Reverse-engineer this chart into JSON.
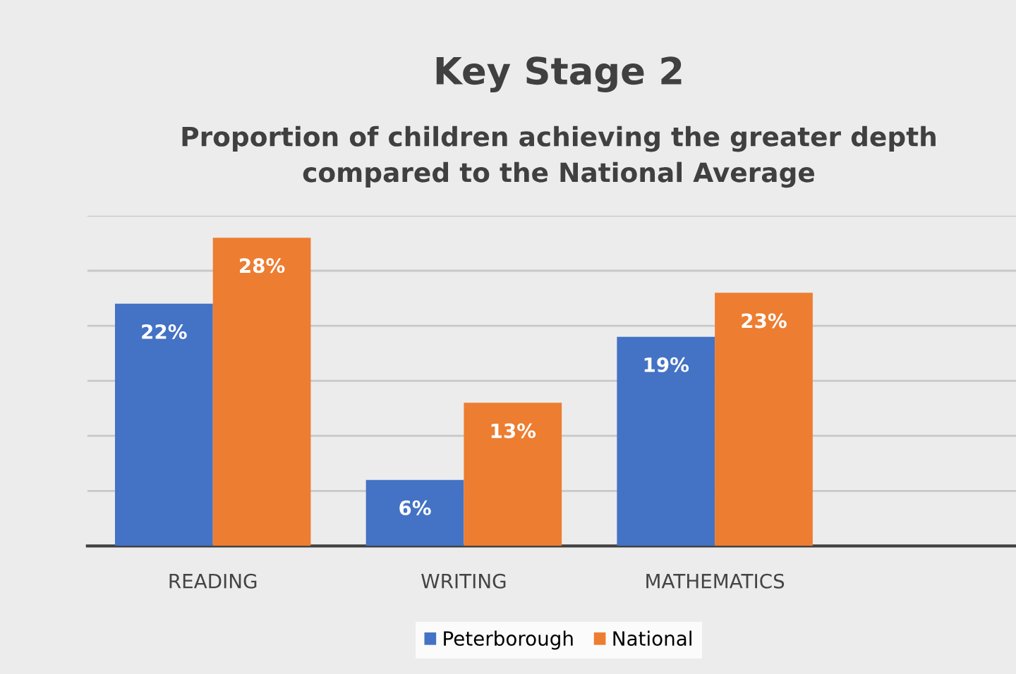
{
  "chart_data": {
    "type": "bar",
    "title": "Key Stage 2",
    "subtitle": "Proportion of children achieving the greater depth\ncompared to the National Average",
    "categories": [
      "READING",
      "WRITING",
      "MATHEMATICS"
    ],
    "series": [
      {
        "name": "Peterborough",
        "color": "#4472c4",
        "values": [
          22,
          6,
          19
        ],
        "value_labels": [
          "22%",
          "6%",
          "19%"
        ]
      },
      {
        "name": "National",
        "color": "#ed7d31",
        "values": [
          28,
          13,
          23
        ],
        "value_labels": [
          "28%",
          "13%",
          "23%"
        ]
      }
    ],
    "ylim": [
      0,
      30
    ],
    "yticks": [
      {
        "value": 0,
        "label": null
      },
      {
        "value": 5,
        "label": null
      },
      {
        "value": 10,
        "label": null
      },
      {
        "value": 15,
        "label": null
      },
      {
        "value": 20,
        "label": null
      },
      {
        "value": 25,
        "label": null
      },
      {
        "value": 30,
        "label": null
      }
    ],
    "grid": "y",
    "legend": "bottom",
    "tick_labels": "x"
  }
}
